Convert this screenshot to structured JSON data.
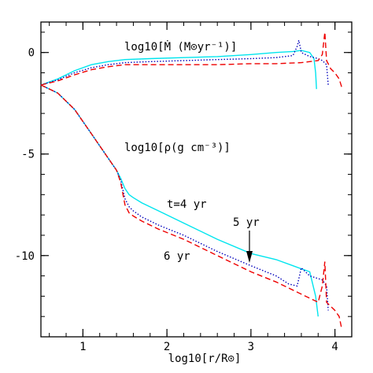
{
  "chart_data": {
    "type": "line",
    "title": "",
    "xlabel": "log10[r/R⊙]",
    "ylabel": "",
    "xlim": [
      0.5,
      4.2
    ],
    "ylim": [
      -14,
      1.5
    ],
    "x_ticks": [
      1,
      2,
      3,
      4
    ],
    "y_ticks": [
      0,
      -5,
      -10
    ],
    "grid": false,
    "legend": "none",
    "annotations": {
      "mdot": "log10[Ṁ (M⊙yr⁻¹)]",
      "rho": "log10[ρ(g cm⁻³)]",
      "t4": "t=4 yr",
      "t5": "5 yr",
      "t6": "6 yr"
    },
    "series": [
      {
        "group": "mdot",
        "style": "solid",
        "color": "#00e5ee",
        "x": [
          0.5,
          0.7,
          0.9,
          1.1,
          1.3,
          1.5,
          1.8,
          2.2,
          2.6,
          3.0,
          3.3,
          3.5,
          3.6,
          3.7,
          3.75,
          3.77,
          3.78
        ],
        "y": [
          -1.6,
          -1.3,
          -0.9,
          -0.6,
          -0.45,
          -0.35,
          -0.3,
          -0.25,
          -0.2,
          -0.1,
          0.0,
          0.05,
          0.1,
          0.0,
          -0.3,
          -1.0,
          -1.8
        ]
      },
      {
        "group": "mdot",
        "style": "dotted",
        "color": "#0000bb",
        "x": [
          0.5,
          0.7,
          0.9,
          1.1,
          1.3,
          1.5,
          1.8,
          2.2,
          2.6,
          3.0,
          3.3,
          3.5,
          3.55,
          3.57,
          3.6,
          3.7,
          3.8,
          3.85,
          3.9,
          3.92
        ],
        "y": [
          -1.6,
          -1.35,
          -1.0,
          -0.75,
          -0.6,
          -0.5,
          -0.45,
          -0.4,
          -0.35,
          -0.3,
          -0.25,
          -0.15,
          0.3,
          0.6,
          0.0,
          -0.2,
          -0.3,
          -0.4,
          -0.6,
          -1.6
        ]
      },
      {
        "group": "mdot",
        "style": "dashed",
        "color": "#ee0000",
        "x": [
          0.5,
          0.7,
          0.9,
          1.1,
          1.3,
          1.5,
          1.8,
          2.2,
          2.6,
          3.0,
          3.3,
          3.6,
          3.8,
          3.85,
          3.88,
          3.9,
          3.95,
          4.0,
          4.05,
          4.08
        ],
        "y": [
          -1.6,
          -1.4,
          -1.1,
          -0.85,
          -0.7,
          -0.6,
          -0.6,
          -0.6,
          -0.6,
          -0.55,
          -0.55,
          -0.5,
          -0.4,
          -0.1,
          1.0,
          -0.4,
          -0.8,
          -1.0,
          -1.3,
          -1.7
        ]
      },
      {
        "group": "rho",
        "style": "solid",
        "color": "#00e5ee",
        "x": [
          0.5,
          0.7,
          0.9,
          1.1,
          1.3,
          1.4,
          1.45,
          1.5,
          1.55,
          1.6,
          1.7,
          1.9,
          2.2,
          2.6,
          3.0,
          3.3,
          3.5,
          3.7,
          3.77,
          3.8
        ],
        "y": [
          -1.6,
          -2.0,
          -2.8,
          -4.0,
          -5.2,
          -5.8,
          -6.2,
          -6.7,
          -7.0,
          -7.15,
          -7.4,
          -7.8,
          -8.4,
          -9.2,
          -9.9,
          -10.2,
          -10.5,
          -10.8,
          -12.0,
          -13.0
        ]
      },
      {
        "group": "rho",
        "style": "dotted",
        "color": "#0000bb",
        "x": [
          0.5,
          0.7,
          0.9,
          1.1,
          1.3,
          1.4,
          1.45,
          1.5,
          1.55,
          1.6,
          1.7,
          1.9,
          2.2,
          2.6,
          3.0,
          3.3,
          3.45,
          3.55,
          3.6,
          3.7,
          3.85,
          3.9,
          3.92
        ],
        "y": [
          -1.6,
          -2.0,
          -2.8,
          -4.0,
          -5.2,
          -5.8,
          -6.3,
          -7.2,
          -7.6,
          -7.8,
          -8.1,
          -8.5,
          -9.0,
          -9.8,
          -10.5,
          -11.0,
          -11.4,
          -11.5,
          -10.6,
          -11.0,
          -11.2,
          -11.5,
          -12.7
        ]
      },
      {
        "group": "rho",
        "style": "dashed",
        "color": "#ee0000",
        "x": [
          0.5,
          0.7,
          0.9,
          1.1,
          1.3,
          1.4,
          1.45,
          1.5,
          1.55,
          1.6,
          1.7,
          1.9,
          2.2,
          2.6,
          3.0,
          3.3,
          3.6,
          3.8,
          3.85,
          3.88,
          3.9,
          3.95,
          4.0,
          4.05,
          4.08
        ],
        "y": [
          -1.6,
          -2.0,
          -2.8,
          -4.0,
          -5.2,
          -5.8,
          -6.4,
          -7.5,
          -7.9,
          -8.05,
          -8.3,
          -8.7,
          -9.2,
          -10.0,
          -10.8,
          -11.3,
          -11.9,
          -12.3,
          -11.5,
          -10.3,
          -12.3,
          -12.5,
          -12.7,
          -13.0,
          -13.6
        ]
      }
    ]
  },
  "colors": {
    "cyan": "#00e5ee",
    "blue": "#0000bb",
    "red": "#ee0000",
    "axis": "#000000"
  }
}
